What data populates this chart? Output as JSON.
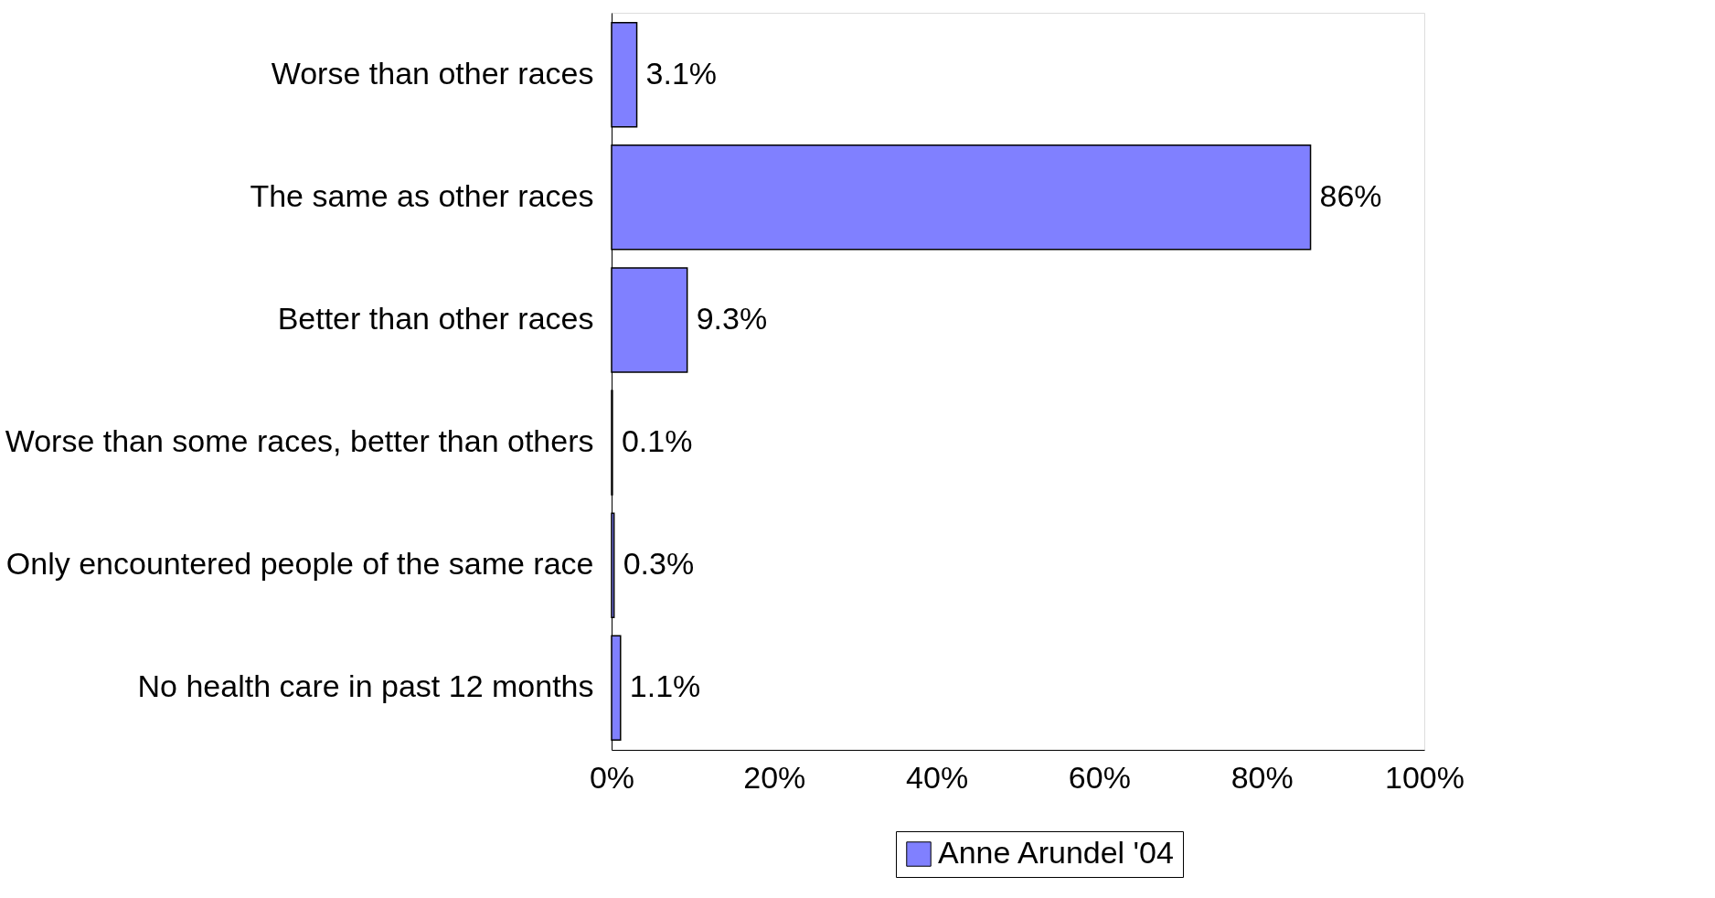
{
  "chart_data": {
    "type": "bar",
    "orientation": "horizontal",
    "categories": [
      "Worse than other races",
      "The same as other races",
      "Better than other races",
      "Worse than some races, better than others",
      "Only encountered people of the same race",
      "No health care in past 12 months"
    ],
    "series": [
      {
        "name": "Anne Arundel '04",
        "color": "#8080ff",
        "values": [
          3.1,
          86,
          9.3,
          0.1,
          0.3,
          1.1
        ],
        "value_labels": [
          "3.1%",
          "86%",
          "9.3%",
          "0.1%",
          "0.3%",
          "1.1%"
        ]
      }
    ],
    "xlim": [
      0,
      100
    ],
    "xticks": [
      {
        "value": 0,
        "label": "0%"
      },
      {
        "value": 20,
        "label": "20%"
      },
      {
        "value": 40,
        "label": "40%"
      },
      {
        "value": 60,
        "label": "60%"
      },
      {
        "value": 80,
        "label": "80%"
      },
      {
        "value": 100,
        "label": "100%"
      }
    ],
    "grid": false,
    "legend": "bottom"
  }
}
